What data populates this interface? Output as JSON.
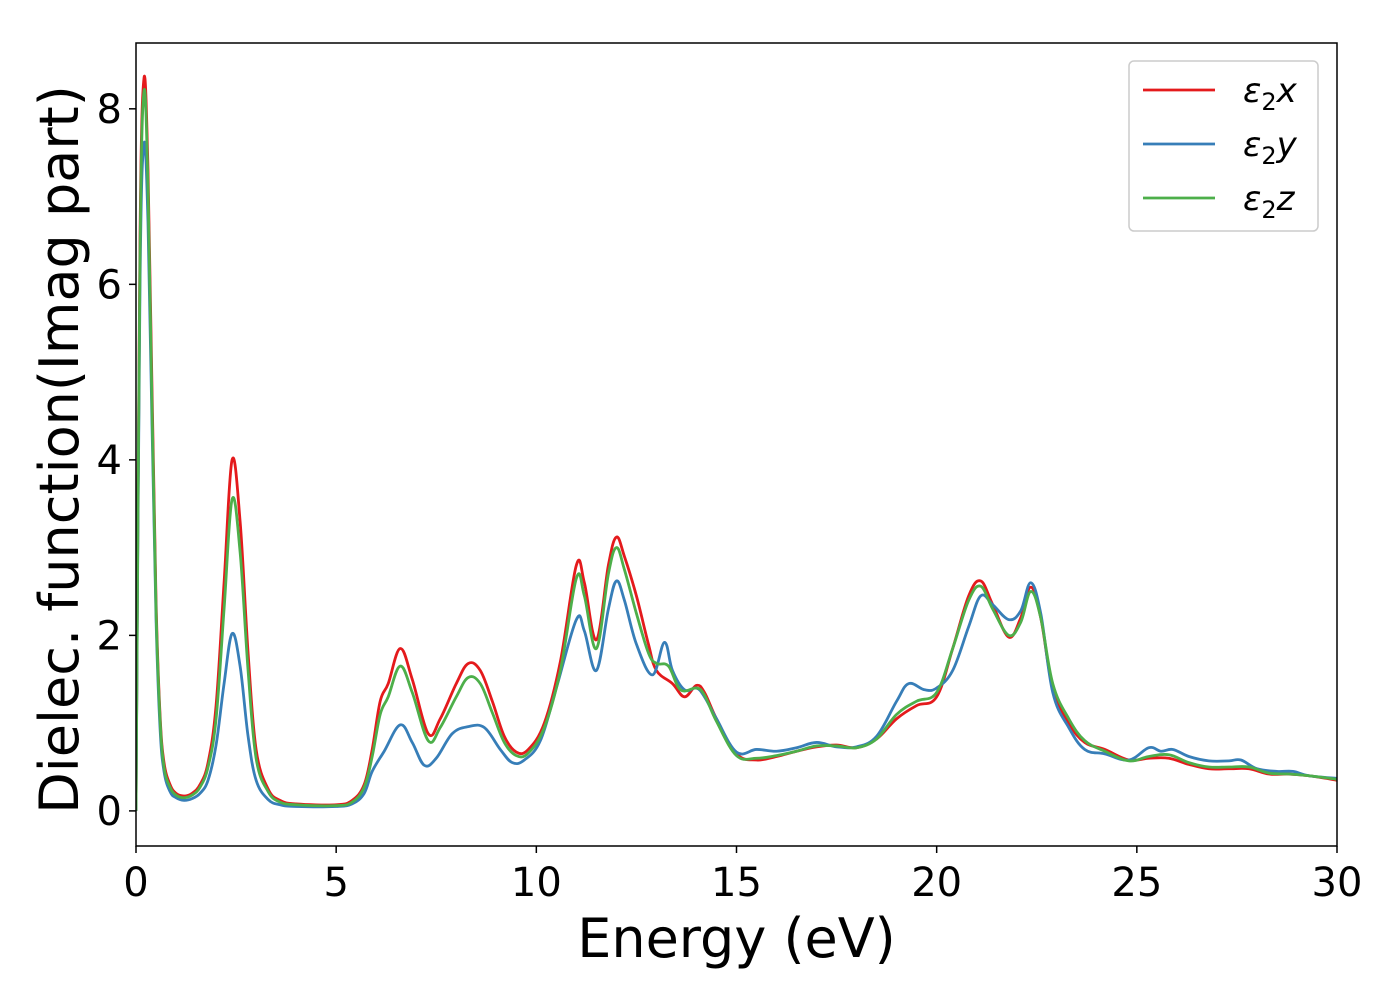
{
  "chart_data": {
    "type": "line",
    "title": "",
    "xlabel": "Energy (eV)",
    "ylabel": "Dielec. function(Imag part)",
    "xlim": [
      0,
      30
    ],
    "ylim": [
      -0.4,
      8.75
    ],
    "xticks": [
      "0",
      "5",
      "10",
      "15",
      "20",
      "25",
      "30"
    ],
    "yticks": [
      "0",
      "2",
      "4",
      "6",
      "8"
    ],
    "grid": false,
    "legend_position": "top-right",
    "series": [
      {
        "name": "ε₂x",
        "legend_main": "ε",
        "legend_sub": "2",
        "legend_tail": "x",
        "color": "#e41a1c",
        "points": [
          [
            0,
            0
          ],
          [
            0.1,
            6.5
          ],
          [
            0.2,
            8.35
          ],
          [
            0.3,
            7.3
          ],
          [
            0.4,
            4.8
          ],
          [
            0.5,
            2.4
          ],
          [
            0.6,
            1.1
          ],
          [
            0.7,
            0.55
          ],
          [
            0.85,
            0.3
          ],
          [
            1.0,
            0.2
          ],
          [
            1.2,
            0.17
          ],
          [
            1.4,
            0.2
          ],
          [
            1.6,
            0.3
          ],
          [
            1.8,
            0.55
          ],
          [
            2.0,
            1.2
          ],
          [
            2.2,
            2.6
          ],
          [
            2.4,
            4.0
          ],
          [
            2.6,
            3.3
          ],
          [
            2.8,
            1.8
          ],
          [
            3.0,
            0.7
          ],
          [
            3.3,
            0.25
          ],
          [
            3.6,
            0.12
          ],
          [
            4.0,
            0.08
          ],
          [
            5.0,
            0.07
          ],
          [
            5.4,
            0.12
          ],
          [
            5.7,
            0.3
          ],
          [
            5.9,
            0.7
          ],
          [
            6.1,
            1.25
          ],
          [
            6.3,
            1.45
          ],
          [
            6.6,
            1.85
          ],
          [
            6.9,
            1.5
          ],
          [
            7.3,
            0.88
          ],
          [
            7.6,
            1.05
          ],
          [
            8.0,
            1.45
          ],
          [
            8.3,
            1.68
          ],
          [
            8.6,
            1.6
          ],
          [
            8.9,
            1.25
          ],
          [
            9.2,
            0.85
          ],
          [
            9.5,
            0.67
          ],
          [
            9.8,
            0.7
          ],
          [
            10.2,
            1.0
          ],
          [
            10.6,
            1.7
          ],
          [
            11.0,
            2.8
          ],
          [
            11.2,
            2.6
          ],
          [
            11.5,
            1.95
          ],
          [
            11.8,
            2.8
          ],
          [
            12.0,
            3.12
          ],
          [
            12.2,
            2.9
          ],
          [
            12.5,
            2.45
          ],
          [
            12.8,
            1.9
          ],
          [
            13.0,
            1.6
          ],
          [
            13.4,
            1.45
          ],
          [
            13.7,
            1.3
          ],
          [
            14.0,
            1.43
          ],
          [
            14.2,
            1.35
          ],
          [
            14.5,
            1.05
          ],
          [
            15.0,
            0.65
          ],
          [
            15.5,
            0.58
          ],
          [
            16.0,
            0.62
          ],
          [
            16.5,
            0.68
          ],
          [
            17.0,
            0.73
          ],
          [
            17.5,
            0.75
          ],
          [
            18.0,
            0.72
          ],
          [
            18.5,
            0.82
          ],
          [
            19.0,
            1.05
          ],
          [
            19.5,
            1.2
          ],
          [
            20.0,
            1.3
          ],
          [
            20.4,
            1.85
          ],
          [
            20.8,
            2.45
          ],
          [
            21.1,
            2.62
          ],
          [
            21.4,
            2.35
          ],
          [
            21.8,
            1.98
          ],
          [
            22.1,
            2.2
          ],
          [
            22.35,
            2.55
          ],
          [
            22.6,
            2.2
          ],
          [
            22.9,
            1.4
          ],
          [
            23.3,
            1.0
          ],
          [
            23.7,
            0.78
          ],
          [
            24.2,
            0.7
          ],
          [
            24.8,
            0.58
          ],
          [
            25.3,
            0.6
          ],
          [
            25.8,
            0.6
          ],
          [
            26.3,
            0.53
          ],
          [
            26.8,
            0.48
          ],
          [
            27.3,
            0.48
          ],
          [
            27.8,
            0.48
          ],
          [
            28.3,
            0.42
          ],
          [
            28.8,
            0.42
          ],
          [
            29.3,
            0.4
          ],
          [
            30,
            0.35
          ]
        ]
      },
      {
        "name": "ε₂y",
        "legend_main": "ε",
        "legend_sub": "2",
        "legend_tail": "y",
        "color": "#377eb8",
        "points": [
          [
            0,
            0
          ],
          [
            0.1,
            6.0
          ],
          [
            0.2,
            7.6
          ],
          [
            0.3,
            6.7
          ],
          [
            0.4,
            4.4
          ],
          [
            0.5,
            2.2
          ],
          [
            0.6,
            0.95
          ],
          [
            0.7,
            0.45
          ],
          [
            0.85,
            0.22
          ],
          [
            1.0,
            0.15
          ],
          [
            1.2,
            0.12
          ],
          [
            1.4,
            0.14
          ],
          [
            1.6,
            0.2
          ],
          [
            1.8,
            0.35
          ],
          [
            2.0,
            0.75
          ],
          [
            2.2,
            1.45
          ],
          [
            2.4,
            2.02
          ],
          [
            2.6,
            1.65
          ],
          [
            2.8,
            0.85
          ],
          [
            3.0,
            0.35
          ],
          [
            3.3,
            0.13
          ],
          [
            3.6,
            0.07
          ],
          [
            4.0,
            0.05
          ],
          [
            5.0,
            0.05
          ],
          [
            5.4,
            0.08
          ],
          [
            5.7,
            0.2
          ],
          [
            5.9,
            0.45
          ],
          [
            6.2,
            0.68
          ],
          [
            6.6,
            0.98
          ],
          [
            6.9,
            0.78
          ],
          [
            7.2,
            0.52
          ],
          [
            7.5,
            0.6
          ],
          [
            7.9,
            0.88
          ],
          [
            8.3,
            0.96
          ],
          [
            8.7,
            0.95
          ],
          [
            9.1,
            0.7
          ],
          [
            9.4,
            0.55
          ],
          [
            9.7,
            0.58
          ],
          [
            10.1,
            0.8
          ],
          [
            10.5,
            1.4
          ],
          [
            11.0,
            2.18
          ],
          [
            11.2,
            2.05
          ],
          [
            11.5,
            1.6
          ],
          [
            11.8,
            2.3
          ],
          [
            12.0,
            2.62
          ],
          [
            12.2,
            2.4
          ],
          [
            12.5,
            1.9
          ],
          [
            12.9,
            1.55
          ],
          [
            13.2,
            1.92
          ],
          [
            13.4,
            1.6
          ],
          [
            13.7,
            1.38
          ],
          [
            14.0,
            1.4
          ],
          [
            14.2,
            1.3
          ],
          [
            14.5,
            1.05
          ],
          [
            15.0,
            0.67
          ],
          [
            15.5,
            0.7
          ],
          [
            16.0,
            0.68
          ],
          [
            16.5,
            0.72
          ],
          [
            17.0,
            0.78
          ],
          [
            17.5,
            0.73
          ],
          [
            18.0,
            0.73
          ],
          [
            18.5,
            0.85
          ],
          [
            19.0,
            1.25
          ],
          [
            19.3,
            1.45
          ],
          [
            19.7,
            1.38
          ],
          [
            20.0,
            1.4
          ],
          [
            20.4,
            1.6
          ],
          [
            20.8,
            2.1
          ],
          [
            21.1,
            2.45
          ],
          [
            21.4,
            2.35
          ],
          [
            21.8,
            2.18
          ],
          [
            22.1,
            2.28
          ],
          [
            22.35,
            2.6
          ],
          [
            22.6,
            2.25
          ],
          [
            22.9,
            1.35
          ],
          [
            23.3,
            0.95
          ],
          [
            23.7,
            0.7
          ],
          [
            24.2,
            0.65
          ],
          [
            24.8,
            0.58
          ],
          [
            25.3,
            0.72
          ],
          [
            25.6,
            0.68
          ],
          [
            25.9,
            0.7
          ],
          [
            26.3,
            0.62
          ],
          [
            26.8,
            0.57
          ],
          [
            27.3,
            0.57
          ],
          [
            27.6,
            0.58
          ],
          [
            28.0,
            0.48
          ],
          [
            28.5,
            0.45
          ],
          [
            28.9,
            0.45
          ],
          [
            29.3,
            0.4
          ],
          [
            30,
            0.37
          ]
        ]
      },
      {
        "name": "ε₂z",
        "legend_main": "ε",
        "legend_sub": "2",
        "legend_tail": "z",
        "color": "#4daf4a",
        "points": [
          [
            0,
            0
          ],
          [
            0.1,
            6.3
          ],
          [
            0.2,
            8.2
          ],
          [
            0.3,
            7.1
          ],
          [
            0.4,
            4.6
          ],
          [
            0.5,
            2.3
          ],
          [
            0.6,
            1.05
          ],
          [
            0.7,
            0.5
          ],
          [
            0.85,
            0.27
          ],
          [
            1.0,
            0.18
          ],
          [
            1.2,
            0.15
          ],
          [
            1.4,
            0.18
          ],
          [
            1.6,
            0.27
          ],
          [
            1.8,
            0.5
          ],
          [
            2.0,
            1.05
          ],
          [
            2.2,
            2.3
          ],
          [
            2.4,
            3.55
          ],
          [
            2.6,
            2.95
          ],
          [
            2.8,
            1.6
          ],
          [
            3.0,
            0.6
          ],
          [
            3.3,
            0.22
          ],
          [
            3.6,
            0.1
          ],
          [
            4.0,
            0.07
          ],
          [
            5.0,
            0.06
          ],
          [
            5.4,
            0.1
          ],
          [
            5.7,
            0.27
          ],
          [
            5.9,
            0.62
          ],
          [
            6.1,
            1.1
          ],
          [
            6.3,
            1.3
          ],
          [
            6.6,
            1.65
          ],
          [
            6.9,
            1.35
          ],
          [
            7.3,
            0.8
          ],
          [
            7.6,
            0.95
          ],
          [
            8.0,
            1.3
          ],
          [
            8.3,
            1.52
          ],
          [
            8.6,
            1.45
          ],
          [
            8.9,
            1.12
          ],
          [
            9.2,
            0.78
          ],
          [
            9.5,
            0.63
          ],
          [
            9.8,
            0.66
          ],
          [
            10.2,
            0.95
          ],
          [
            10.6,
            1.6
          ],
          [
            11.0,
            2.65
          ],
          [
            11.2,
            2.45
          ],
          [
            11.5,
            1.85
          ],
          [
            11.8,
            2.7
          ],
          [
            12.0,
            3.0
          ],
          [
            12.2,
            2.75
          ],
          [
            12.5,
            2.25
          ],
          [
            12.8,
            1.8
          ],
          [
            13.0,
            1.68
          ],
          [
            13.3,
            1.65
          ],
          [
            13.6,
            1.38
          ],
          [
            14.0,
            1.4
          ],
          [
            14.2,
            1.32
          ],
          [
            14.5,
            1.02
          ],
          [
            15.0,
            0.63
          ],
          [
            15.5,
            0.6
          ],
          [
            16.0,
            0.63
          ],
          [
            16.5,
            0.68
          ],
          [
            17.0,
            0.74
          ],
          [
            17.5,
            0.74
          ],
          [
            18.0,
            0.72
          ],
          [
            18.5,
            0.82
          ],
          [
            19.0,
            1.1
          ],
          [
            19.5,
            1.25
          ],
          [
            20.0,
            1.35
          ],
          [
            20.4,
            1.85
          ],
          [
            20.8,
            2.4
          ],
          [
            21.1,
            2.56
          ],
          [
            21.4,
            2.3
          ],
          [
            21.8,
            2.0
          ],
          [
            22.1,
            2.15
          ],
          [
            22.35,
            2.5
          ],
          [
            22.6,
            2.2
          ],
          [
            22.9,
            1.45
          ],
          [
            23.3,
            1.05
          ],
          [
            23.7,
            0.8
          ],
          [
            24.2,
            0.68
          ],
          [
            24.8,
            0.57
          ],
          [
            25.3,
            0.62
          ],
          [
            25.8,
            0.64
          ],
          [
            26.3,
            0.55
          ],
          [
            26.8,
            0.5
          ],
          [
            27.3,
            0.5
          ],
          [
            27.8,
            0.5
          ],
          [
            28.3,
            0.43
          ],
          [
            28.8,
            0.42
          ],
          [
            29.3,
            0.4
          ],
          [
            30,
            0.36
          ]
        ]
      }
    ]
  }
}
